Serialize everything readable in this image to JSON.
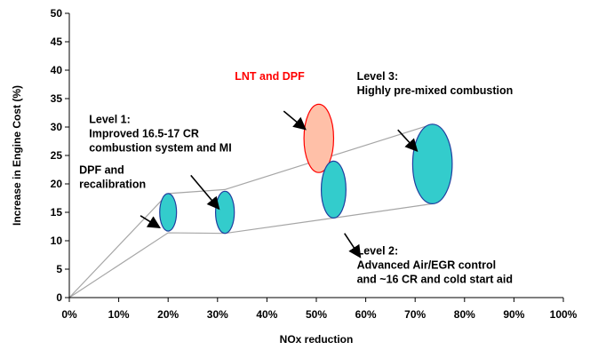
{
  "chart_data": {
    "type": "scatter",
    "title": "",
    "xlabel": "NOx reduction",
    "ylabel": "Increase in Engine Cost (%)",
    "xlim": [
      0,
      100
    ],
    "ylim": [
      0,
      50
    ],
    "x_ticks": [
      "0%",
      "10%",
      "20%",
      "30%",
      "40%",
      "50%",
      "60%",
      "70%",
      "80%",
      "90%",
      "100%"
    ],
    "y_ticks": [
      "0",
      "5",
      "10",
      "15",
      "20",
      "25",
      "30",
      "35",
      "40",
      "45",
      "50"
    ],
    "grid": false,
    "colors": {
      "ellipse_fill": "#33cccc",
      "ellipse_stroke": "#1f3f9f",
      "lnt_fill": "#ffc0a8",
      "lnt_stroke": "#ff0000",
      "envelope_line": "#a6a6a6",
      "axis": "#000000"
    },
    "ellipses": [
      {
        "name": "dpf",
        "x": 20,
        "y": 15,
        "x_halfwidth": 1.7,
        "y_halfheight": 3.3,
        "style": "teal"
      },
      {
        "name": "level1",
        "x": 31.5,
        "y": 15,
        "x_halfwidth": 1.9,
        "y_halfheight": 3.7,
        "style": "teal"
      },
      {
        "name": "lnt",
        "x": 50.5,
        "y": 28,
        "x_halfwidth": 3.0,
        "y_halfheight": 6.0,
        "style": "lnt"
      },
      {
        "name": "level2",
        "x": 53.5,
        "y": 19,
        "x_halfwidth": 2.5,
        "y_halfheight": 5.0,
        "style": "teal"
      },
      {
        "name": "level3",
        "x": 73.5,
        "y": 23.5,
        "x_halfwidth": 4.0,
        "y_halfheight": 7.0,
        "style": "teal"
      }
    ],
    "envelope_lines": [
      {
        "points": [
          [
            0,
            0
          ],
          [
            20,
            18.3
          ],
          [
            31.5,
            19
          ],
          [
            73.5,
            30.5
          ]
        ]
      },
      {
        "points": [
          [
            0,
            0
          ],
          [
            20,
            11.4
          ],
          [
            31.5,
            11.3
          ],
          [
            53.5,
            14
          ],
          [
            73.5,
            16.5
          ]
        ]
      }
    ],
    "annotations": [
      {
        "lines": [
          "DPF and",
          "recalibration"
        ],
        "text_x": 2,
        "text_y": 21.8,
        "arrow_from": [
          14.4,
          14.4
        ],
        "arrow_to": [
          18.3,
          12.3
        ],
        "color": "black"
      },
      {
        "lines": [
          "Level 1:",
          "Improved 16.5-17 CR",
          "combustion system and MI"
        ],
        "text_x": 4,
        "text_y": 30.7,
        "arrow_from": [
          24.6,
          21.5
        ],
        "arrow_to": [
          30.3,
          15.6
        ],
        "color": "black"
      },
      {
        "lines": [
          "LNT and DPF"
        ],
        "text_x": 33.5,
        "text_y": 38.3,
        "arrow_from": [
          43.4,
          32.8
        ],
        "arrow_to": [
          47.8,
          29.6
        ],
        "color": "red"
      },
      {
        "lines": [
          "Level 3:",
          "Highly pre-mixed combustion"
        ],
        "text_x": 58.2,
        "text_y": 38.3,
        "arrow_from": [
          66.5,
          29.5
        ],
        "arrow_to": [
          70.4,
          25.8
        ],
        "color": "black"
      },
      {
        "lines": [
          "Level 2:",
          "Advanced Air/EGR control",
          "and ~16 CR and cold start aid"
        ],
        "text_x": 58.2,
        "text_y": 7.6,
        "arrow_from": [
          55.7,
          11.3
        ],
        "arrow_to": [
          58.9,
          7.1
        ],
        "color": "black"
      }
    ]
  }
}
